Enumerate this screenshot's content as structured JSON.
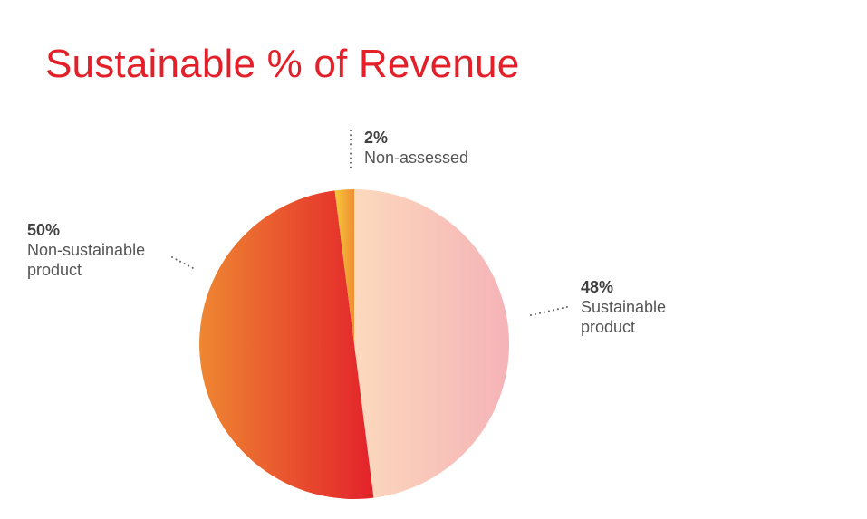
{
  "title": "Sustainable % of Revenue",
  "chart_data": {
    "type": "pie",
    "title": "Sustainable % of Revenue",
    "slices": [
      {
        "label": "Sustainable product",
        "value": 48,
        "display": "48%",
        "line1": "Sustainable",
        "line2": "product",
        "color_start": "#fcd9bd",
        "color_end": "#f5b3b7"
      },
      {
        "label": "Non-sustainable product",
        "value": 50,
        "display": "50%",
        "line1": "Non-sustainable",
        "line2": "product",
        "color_start": "#ee8732",
        "color_end": "#e3202a"
      },
      {
        "label": "Non-assessed",
        "value": 2,
        "display": "2%",
        "line1": "Non-assessed",
        "line2": "",
        "color_start": "#f8d33a",
        "color_end": "#ee8732"
      }
    ]
  },
  "colors": {
    "title": "#e3202a",
    "leader": "#666666"
  }
}
